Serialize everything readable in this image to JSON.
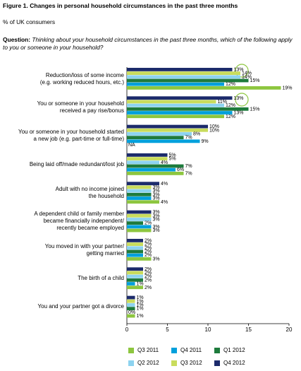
{
  "chart_data": {
    "type": "bar",
    "orientation": "horizontal",
    "title": "Figure 1. Changes in personal household circumstances in the past three months",
    "subtitle": "% of UK consumers",
    "question_label": "Question:",
    "question": "Thinking about your household circumstances in the past three months, which of the following apply to you or someone in your household?",
    "categories": [
      "Reduction/loss of some income\n(e.g. working reduced hours, etc.)",
      "You or someone in your household\nreceived a pay rise/bonus",
      "You or someone in your household started\na new job (e.g. part-time or full-time)",
      "Being laid off/made redundant/lost job",
      "Adult with no income joined\nthe household",
      "A dependent child or family member\nbecame financially independent/\nrecently became employed",
      "You moved in with your partner/\ngetting married",
      "The birth of a child",
      "You and your partner got a divorce"
    ],
    "series": [
      {
        "name": "Q3 2011",
        "color": "#8dc63f",
        "values": [
          19,
          12,
          null,
          7,
          4,
          3,
          3,
          2,
          1
        ],
        "value_labels": [
          "19%",
          "12%",
          "NA",
          "7%",
          "4%",
          "3%",
          "3%",
          "2%",
          "1%"
        ]
      },
      {
        "name": "Q4 2011",
        "color": "#00a0dc",
        "values": [
          12,
          13,
          9,
          6,
          3,
          3,
          2,
          1,
          0
        ],
        "value_labels": [
          "12%",
          "13%",
          "9%",
          "6%",
          "3%",
          "3%",
          "2%",
          "1%",
          "0%"
        ]
      },
      {
        "name": "Q1 2012",
        "color": "#1e7b3c",
        "values": [
          15,
          15,
          7,
          7,
          3,
          2,
          2,
          2,
          1
        ],
        "value_labels": [
          "15%",
          "15%",
          "7%",
          "7%",
          "3%",
          "2%",
          "2%",
          "2%",
          "1%"
        ]
      },
      {
        "name": "Q2 2012",
        "color": "#8dd3f0",
        "values": [
          14,
          12,
          8,
          4,
          3,
          3,
          2,
          2,
          1
        ],
        "value_labels": [
          "14%",
          "12%",
          "8%",
          "4%",
          "3%",
          "3%",
          "2%",
          "2%",
          "1%"
        ]
      },
      {
        "name": "Q3 2012",
        "color": "#c9dc5c",
        "values": [
          14,
          11,
          10,
          5,
          3,
          3,
          2,
          2,
          1
        ],
        "value_labels": [
          "14%",
          "11%",
          "10%",
          "5%",
          "3%",
          "3%",
          "2%",
          "2%",
          "1%"
        ]
      },
      {
        "name": "Q4 2012",
        "color": "#1c2b6b",
        "values": [
          13,
          13,
          10,
          5,
          4,
          3,
          2,
          2,
          1
        ],
        "value_labels": [
          "13%",
          "13%",
          "10%",
          "5%",
          "4%",
          "3%",
          "2%",
          "2%",
          "1%"
        ]
      }
    ],
    "xlim": [
      0,
      20
    ],
    "xticks": [
      0,
      5,
      10,
      15,
      20
    ],
    "grid": false
  }
}
